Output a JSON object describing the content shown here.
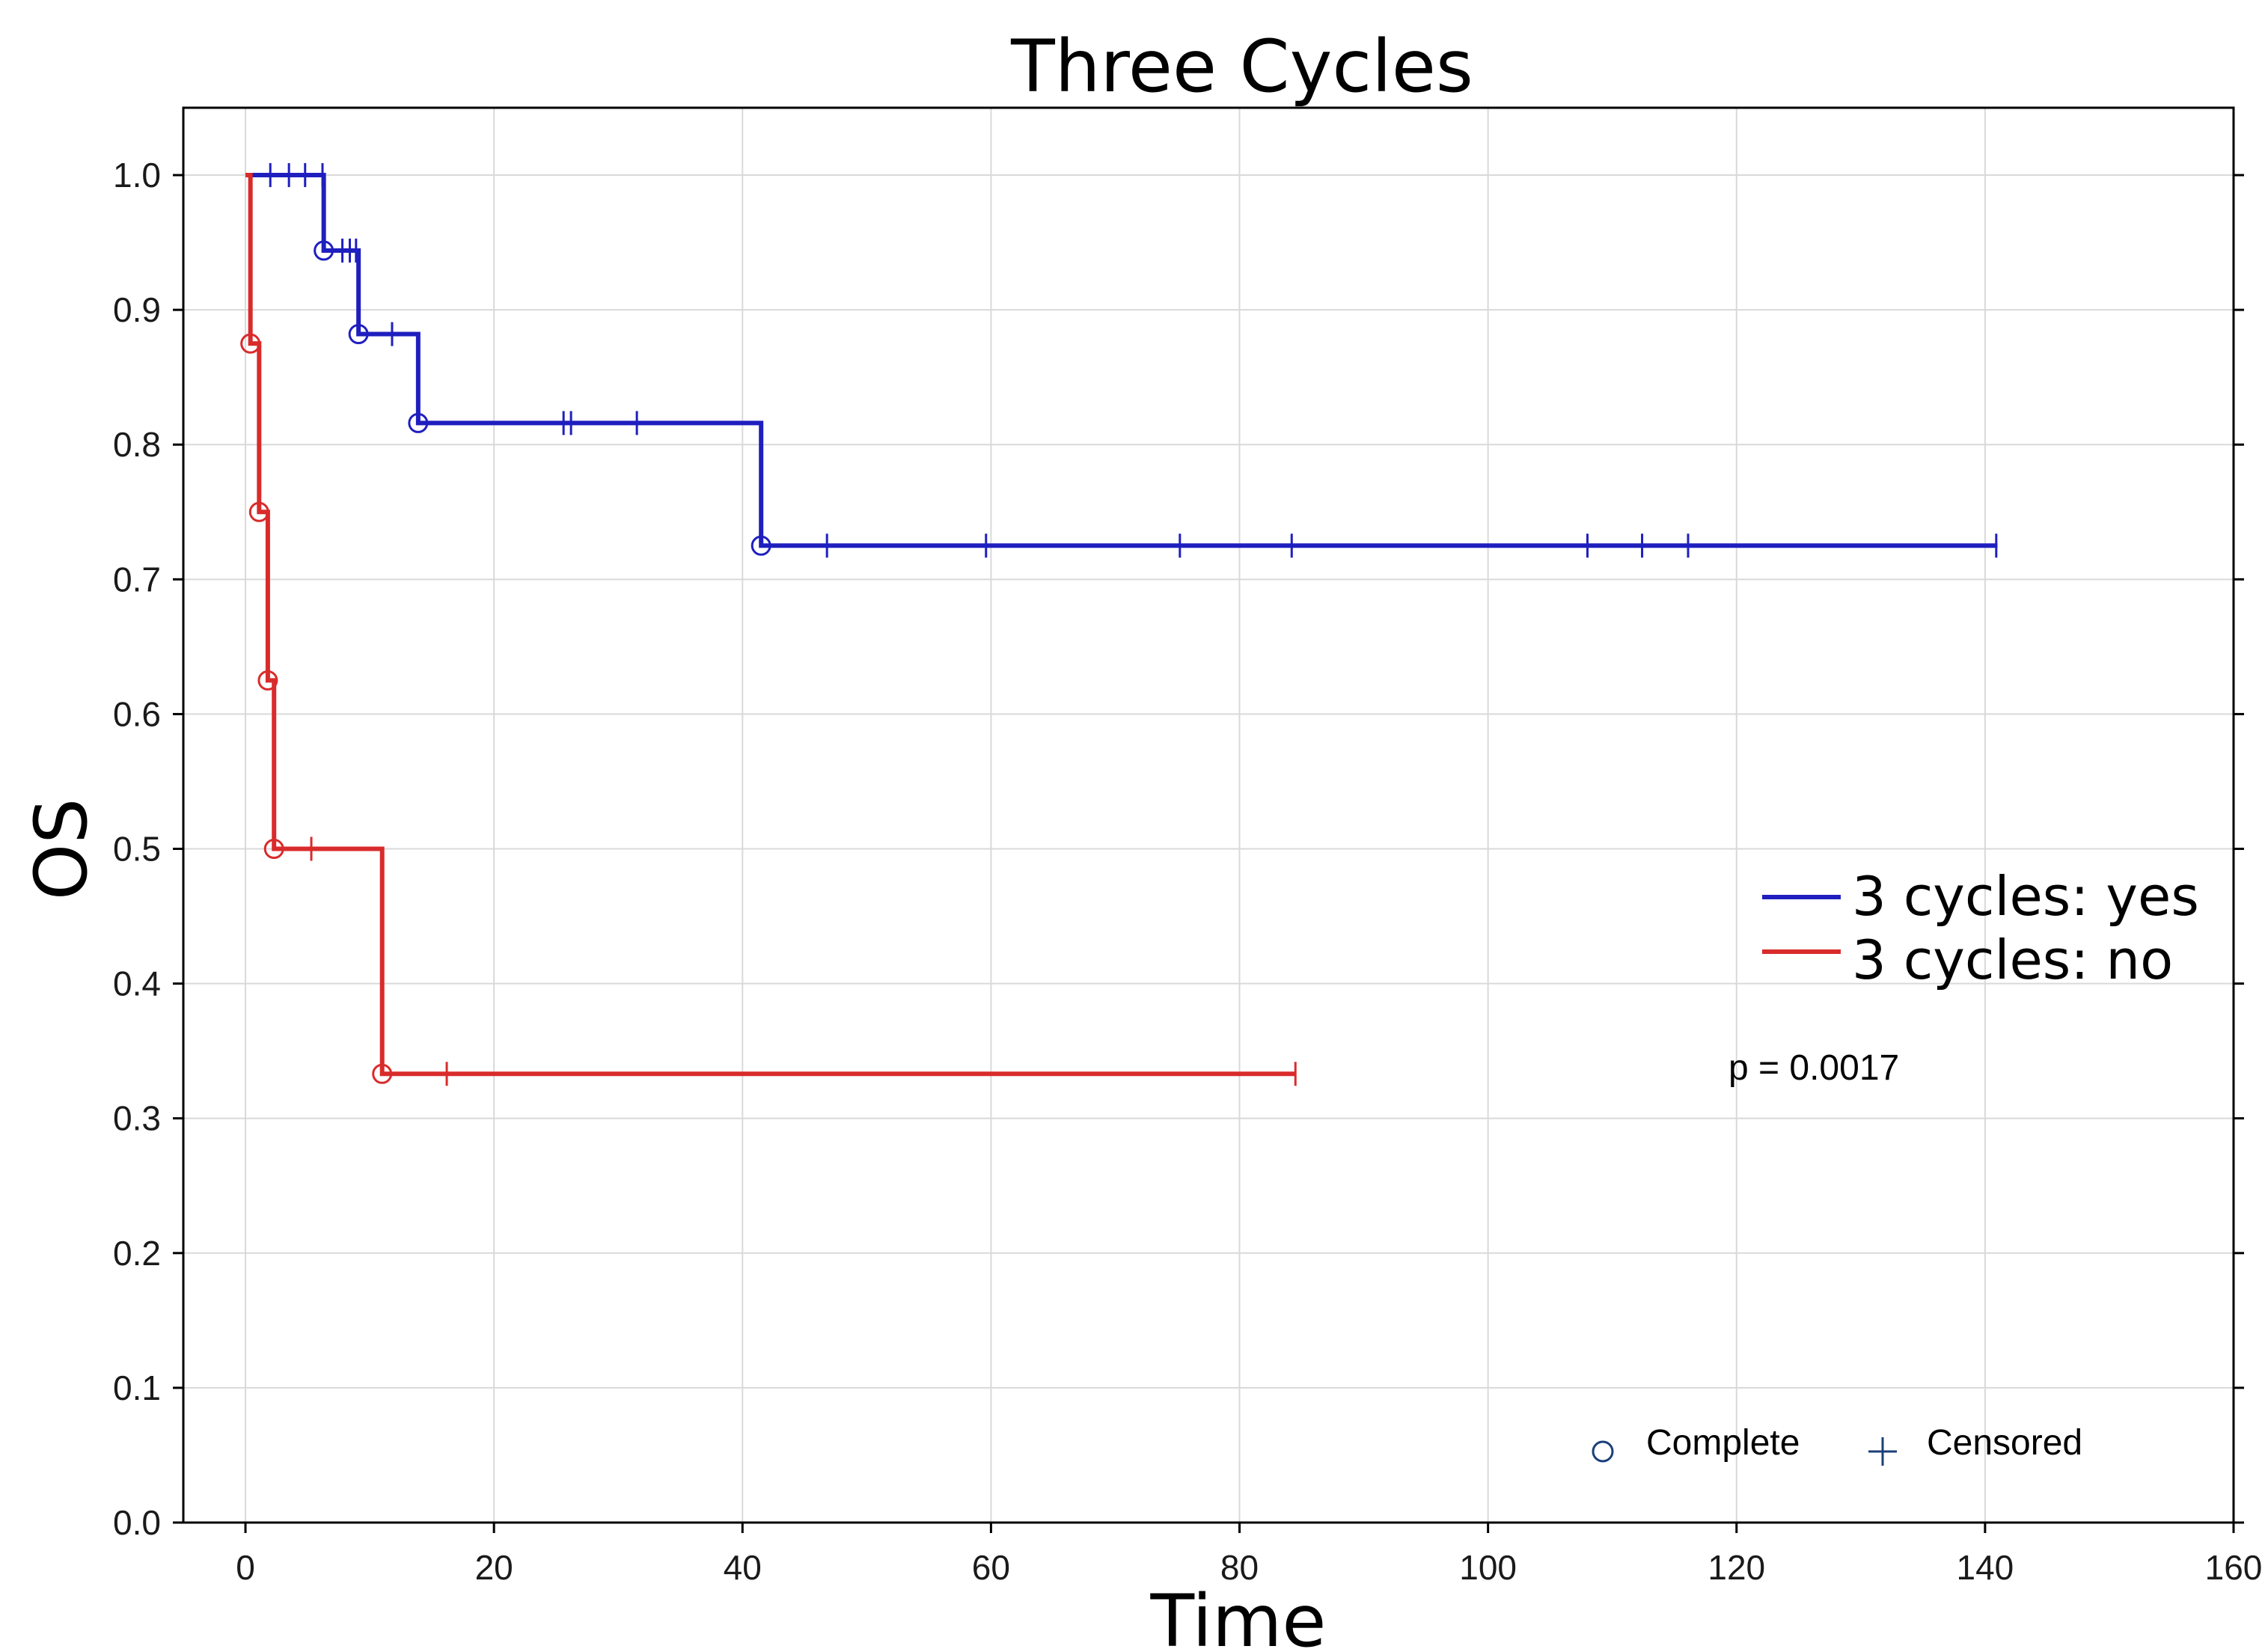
{
  "chart_data": {
    "type": "line",
    "title": "Three Cycles",
    "xlabel": "Time",
    "ylabel": "OS",
    "xlim": [
      -5,
      160
    ],
    "ylim": [
      0,
      1.05
    ],
    "x_ticks": [
      0,
      20,
      40,
      60,
      80,
      100,
      120,
      140,
      160
    ],
    "y_ticks": [
      0.0,
      0.1,
      0.2,
      0.3,
      0.4,
      0.5,
      0.6,
      0.7,
      0.8,
      0.9,
      1.0
    ],
    "x_tick_labels": [
      "0",
      "20",
      "40",
      "60",
      "80",
      "100",
      "120",
      "140",
      "160"
    ],
    "y_tick_labels": [
      "0.0",
      "0.1",
      "0.2",
      "0.3",
      "0.4",
      "0.5",
      "0.6",
      "0.7",
      "0.8",
      "0.9",
      "1.0"
    ],
    "grid": true,
    "series": [
      {
        "name": "3 cycles: yes",
        "color": "#1f1fbf",
        "steps": [
          {
            "x": 0,
            "y": 1.0
          },
          {
            "x": 6.3,
            "y": 0.944
          },
          {
            "x": 9.1,
            "y": 0.882
          },
          {
            "x": 13.9,
            "y": 0.816
          },
          {
            "x": 41.5,
            "y": 0.725
          },
          {
            "x": 141,
            "y": 0.725
          }
        ],
        "complete": [
          {
            "x": 6.3,
            "y": 0.944
          },
          {
            "x": 9.1,
            "y": 0.882
          },
          {
            "x": 13.9,
            "y": 0.816
          },
          {
            "x": 41.5,
            "y": 0.725
          }
        ],
        "censored": [
          {
            "x": 2.0,
            "y": 1.0
          },
          {
            "x": 3.5,
            "y": 1.0
          },
          {
            "x": 4.8,
            "y": 1.0
          },
          {
            "x": 6.2,
            "y": 1.0
          },
          {
            "x": 7.8,
            "y": 0.944
          },
          {
            "x": 8.4,
            "y": 0.944
          },
          {
            "x": 8.9,
            "y": 0.944
          },
          {
            "x": 11.8,
            "y": 0.882
          },
          {
            "x": 25.6,
            "y": 0.816
          },
          {
            "x": 26.2,
            "y": 0.816
          },
          {
            "x": 31.5,
            "y": 0.816
          },
          {
            "x": 46.8,
            "y": 0.725
          },
          {
            "x": 59.6,
            "y": 0.725
          },
          {
            "x": 75.2,
            "y": 0.725
          },
          {
            "x": 84.2,
            "y": 0.725
          },
          {
            "x": 108.0,
            "y": 0.725
          },
          {
            "x": 112.4,
            "y": 0.725
          },
          {
            "x": 116.1,
            "y": 0.725
          },
          {
            "x": 140.9,
            "y": 0.725
          }
        ]
      },
      {
        "name": "3 cycles: no",
        "color": "#d92b2b",
        "steps": [
          {
            "x": 0,
            "y": 1.0
          },
          {
            "x": 0.4,
            "y": 0.875
          },
          {
            "x": 1.1,
            "y": 0.75
          },
          {
            "x": 1.8,
            "y": 0.625
          },
          {
            "x": 2.3,
            "y": 0.5
          },
          {
            "x": 11.0,
            "y": 0.333
          },
          {
            "x": 84.5,
            "y": 0.333
          }
        ],
        "complete": [
          {
            "x": 0.4,
            "y": 0.875
          },
          {
            "x": 1.1,
            "y": 0.75
          },
          {
            "x": 1.8,
            "y": 0.625
          },
          {
            "x": 2.3,
            "y": 0.5
          },
          {
            "x": 11.0,
            "y": 0.333
          }
        ],
        "censored": [
          {
            "x": 5.3,
            "y": 0.5
          },
          {
            "x": 16.2,
            "y": 0.333
          },
          {
            "x": 84.5,
            "y": 0.333
          }
        ]
      }
    ],
    "legend": {
      "placement": "right",
      "entries": [
        "3 cycles: yes",
        "3 cycles: no"
      ]
    },
    "marker_legend": {
      "placement": "bottom-right",
      "complete_label": "Complete",
      "censored_label": "Censored",
      "complete_icon": "circle-icon",
      "censored_icon": "plus-icon"
    },
    "annotation": "p = 0.0017"
  }
}
